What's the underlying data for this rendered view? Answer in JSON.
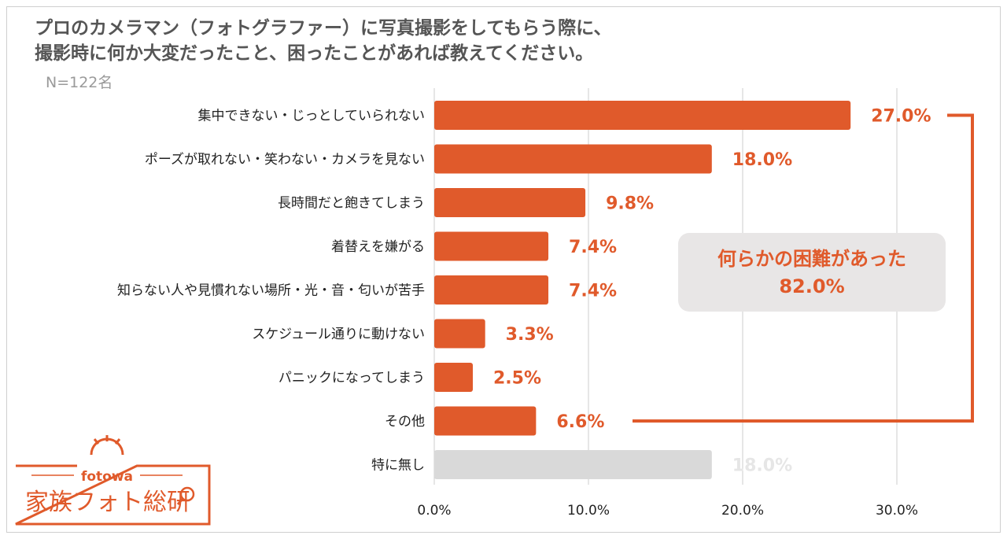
{
  "title_lines": [
    "プロのカメラマン（フォトグラファー）に写真撮影をしてもらう際に、",
    "撮影時に何か大変だったこと、困ったことがあれば教えてください。"
  ],
  "sample_label": "N=122名",
  "colors": {
    "accent": "#e05a2b",
    "muted_bar": "#d9d9d9",
    "muted_label": "#e6e6e6",
    "callout_bg": "#e8e6e6",
    "grid": "#cccccc"
  },
  "callout": {
    "line1": "何らかの困難があった",
    "line2": "82.0%"
  },
  "logo": {
    "brand": "fotowa",
    "name": "家族フォト総研"
  },
  "chart_data": {
    "type": "bar",
    "orientation": "horizontal",
    "title": "プロのカメラマン（フォトグラファー）に写真撮影をしてもらう際に、撮影時に何か大変だったこと、困ったことがあれば教えてください。",
    "categories": [
      "集中できない・じっとしていられない",
      "ポーズが取れない・笑わない・カメラを見ない",
      "長時間だと飽きてしまう",
      "着替えを嫌がる",
      "知らない人や見慣れない場所・光・音・匂いが苦手",
      "スケジュール通りに動けない",
      "パニックになってしまう",
      "その他",
      "特に無し"
    ],
    "values": [
      27.0,
      18.0,
      9.8,
      7.4,
      7.4,
      3.3,
      2.5,
      6.6,
      18.0
    ],
    "value_labels": [
      "27.0%",
      "18.0%",
      "9.8%",
      "7.4%",
      "7.4%",
      "3.3%",
      "2.5%",
      "6.6%",
      "18.0%"
    ],
    "muted_categories": [
      "特に無し"
    ],
    "xlim": [
      0,
      30
    ],
    "xticks": [
      0,
      10,
      20,
      30
    ],
    "xtick_labels": [
      "0.0%",
      "10.0%",
      "20.0%",
      "30.0%"
    ],
    "grid": true,
    "legend": "none"
  }
}
